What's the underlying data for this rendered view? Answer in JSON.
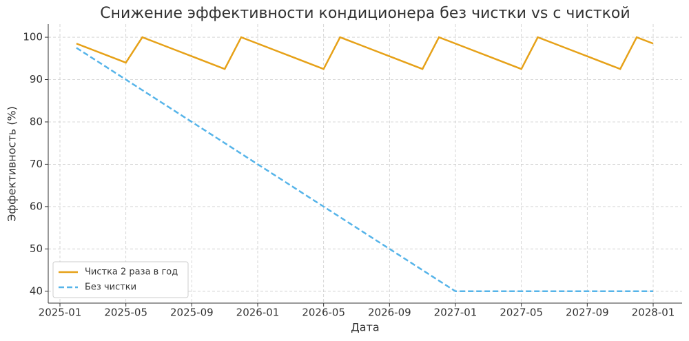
{
  "chart_data": {
    "type": "line",
    "title": "Снижение эффективности кондиционера без чистки vs с чисткой",
    "x_label": "Дата",
    "y_label": "Эффективность (%)",
    "x": [
      "2025-02",
      "2025-03",
      "2025-04",
      "2025-05",
      "2025-06",
      "2025-07",
      "2025-08",
      "2025-09",
      "2025-10",
      "2025-11",
      "2025-12",
      "2026-01",
      "2026-02",
      "2026-03",
      "2026-04",
      "2026-05",
      "2026-06",
      "2026-07",
      "2026-08",
      "2026-09",
      "2026-10",
      "2026-11",
      "2026-12",
      "2027-01",
      "2027-02",
      "2027-03",
      "2027-04",
      "2027-05",
      "2027-06",
      "2027-07",
      "2027-08",
      "2027-09",
      "2027-10",
      "2027-11",
      "2027-12",
      "2028-01"
    ],
    "series": [
      {
        "name": "Чистка 2 раза в год",
        "color": "#e6a118",
        "dash": "solid",
        "values": [
          98.5,
          97,
          95.5,
          94,
          100,
          98.5,
          97,
          95.5,
          94,
          92.5,
          100,
          98.5,
          97,
          95.5,
          94,
          92.5,
          100,
          98.5,
          97,
          95.5,
          94,
          92.5,
          100,
          98.5,
          97,
          95.5,
          94,
          92.5,
          100,
          98.5,
          97,
          95.5,
          94,
          92.5,
          100,
          98.5
        ]
      },
      {
        "name": "Без чистки",
        "color": "#56b4e9",
        "dash": "dashed",
        "values": [
          97.5,
          95,
          92.5,
          90,
          87.5,
          85,
          82.5,
          80,
          77.5,
          75,
          72.5,
          70,
          67.5,
          65,
          62.5,
          60,
          57.5,
          55,
          52.5,
          50,
          47.5,
          45,
          42.5,
          40,
          40,
          40,
          40,
          40,
          40,
          40,
          40,
          40,
          40,
          40,
          40,
          40
        ]
      }
    ],
    "xticks": [
      "2025-01",
      "2025-05",
      "2025-09",
      "2026-01",
      "2026-05",
      "2026-09",
      "2027-01",
      "2027-05",
      "2027-09",
      "2028-01"
    ],
    "ylim": [
      37.2,
      103.1
    ],
    "yticks": [
      40,
      50,
      60,
      70,
      80,
      90,
      100
    ],
    "grid": true,
    "legend": "lower left"
  }
}
